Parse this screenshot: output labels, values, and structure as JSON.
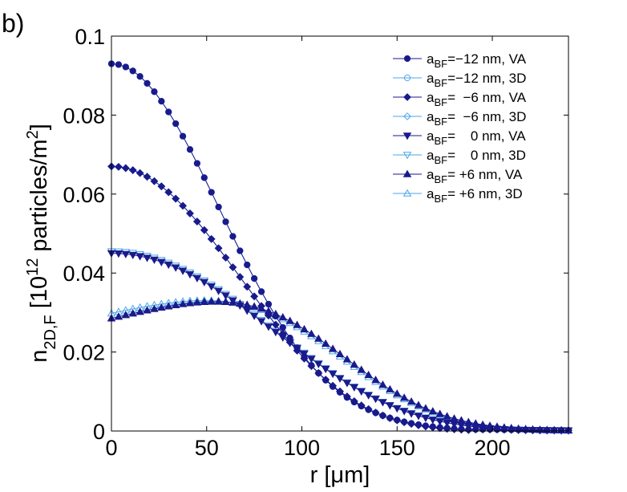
{
  "chart_data": {
    "type": "line",
    "panel_label": "b)",
    "xlabel": "r [μm]",
    "ylabel": {
      "n": "n",
      "sub": "2D,F",
      "bracket_open": " [10",
      "exp": "12",
      "unit": " particles/m",
      "unit_exp": "2",
      "bracket_close": "]"
    },
    "xlim": [
      0,
      240
    ],
    "ylim": [
      0,
      0.1
    ],
    "xticks": [
      0,
      50,
      100,
      150,
      200
    ],
    "xtick_labels": [
      "0",
      "50",
      "100",
      "150",
      "200"
    ],
    "yticks": [
      0,
      0.02,
      0.04,
      0.06,
      0.08,
      0.1
    ],
    "ytick_labels": [
      "0",
      "0.02",
      "0.04",
      "0.06",
      "0.08",
      "0.1"
    ],
    "x_step": 3.75,
    "colors": {
      "va": "#1a1a8c",
      "d3": "#4da6e8"
    },
    "series": [
      {
        "legend_main": "a",
        "legend_sub": "BF",
        "legend_rest": "=−12 nm, VA",
        "marker": "circle",
        "filled": true,
        "color_key": "va",
        "n0": 0.093,
        "sigma": 80,
        "a4": 0,
        "g": 0,
        "gmu": 0,
        "gsig": 1,
        "tail": 0.0004
      },
      {
        "legend_main": "a",
        "legend_sub": "BF",
        "legend_rest": "=−12 nm, 3D",
        "marker": "circle",
        "filled": false,
        "color_key": "d3",
        "n0": 0.093,
        "sigma": 80,
        "a4": 0,
        "g": 0,
        "gmu": 0,
        "gsig": 1,
        "tail": 0.0004
      },
      {
        "legend_main": "a",
        "legend_sub": "BF",
        "legend_rest": "=  −6 nm, VA",
        "marker": "diamond",
        "filled": true,
        "color_key": "va",
        "n0": 0.067,
        "sigma": 90,
        "a4": 0.35,
        "g": 0,
        "gmu": 0,
        "gsig": 1,
        "tail": 0.0004
      },
      {
        "legend_main": "a",
        "legend_sub": "BF",
        "legend_rest": "=  −6 nm, 3D",
        "marker": "diamond",
        "filled": false,
        "color_key": "d3",
        "n0": 0.067,
        "sigma": 90,
        "a4": 0.35,
        "g": 0,
        "gmu": 0,
        "gsig": 1,
        "tail": 0.0004
      },
      {
        "legend_main": "a",
        "legend_sub": "BF",
        "legend_rest": "=    0 nm, VA",
        "marker": "tri-down",
        "filled": true,
        "color_key": "va",
        "n0": 0.045,
        "sigma": 110,
        "a4": 0.5,
        "g": 0,
        "gmu": 0,
        "gsig": 1,
        "tail": 0.0004
      },
      {
        "legend_main": "a",
        "legend_sub": "BF",
        "legend_rest": "=    0 nm, 3D",
        "marker": "tri-down",
        "filled": false,
        "color_key": "d3",
        "n0": 0.0455,
        "sigma": 110,
        "a4": 0.5,
        "g": 0,
        "gmu": 0,
        "gsig": 1,
        "tail": 0.0004
      },
      {
        "legend_main": "a",
        "legend_sub": "BF",
        "legend_rest": "= +6 nm, VA",
        "marker": "tri-up",
        "filled": true,
        "color_key": "va",
        "n0": 0.0255,
        "sigma": 105,
        "a4": 0.6,
        "g": 0.0162,
        "gmu": 88,
        "gsig": 48,
        "tail": 0.0004
      },
      {
        "legend_main": "a",
        "legend_sub": "BF",
        "legend_rest": "= +6 nm, 3D",
        "marker": "tri-up",
        "filled": false,
        "color_key": "d3",
        "n0": 0.027,
        "sigma": 105,
        "a4": 0.6,
        "g": 0.015,
        "gmu": 88,
        "gsig": 48,
        "tail": 0.0004
      }
    ]
  }
}
